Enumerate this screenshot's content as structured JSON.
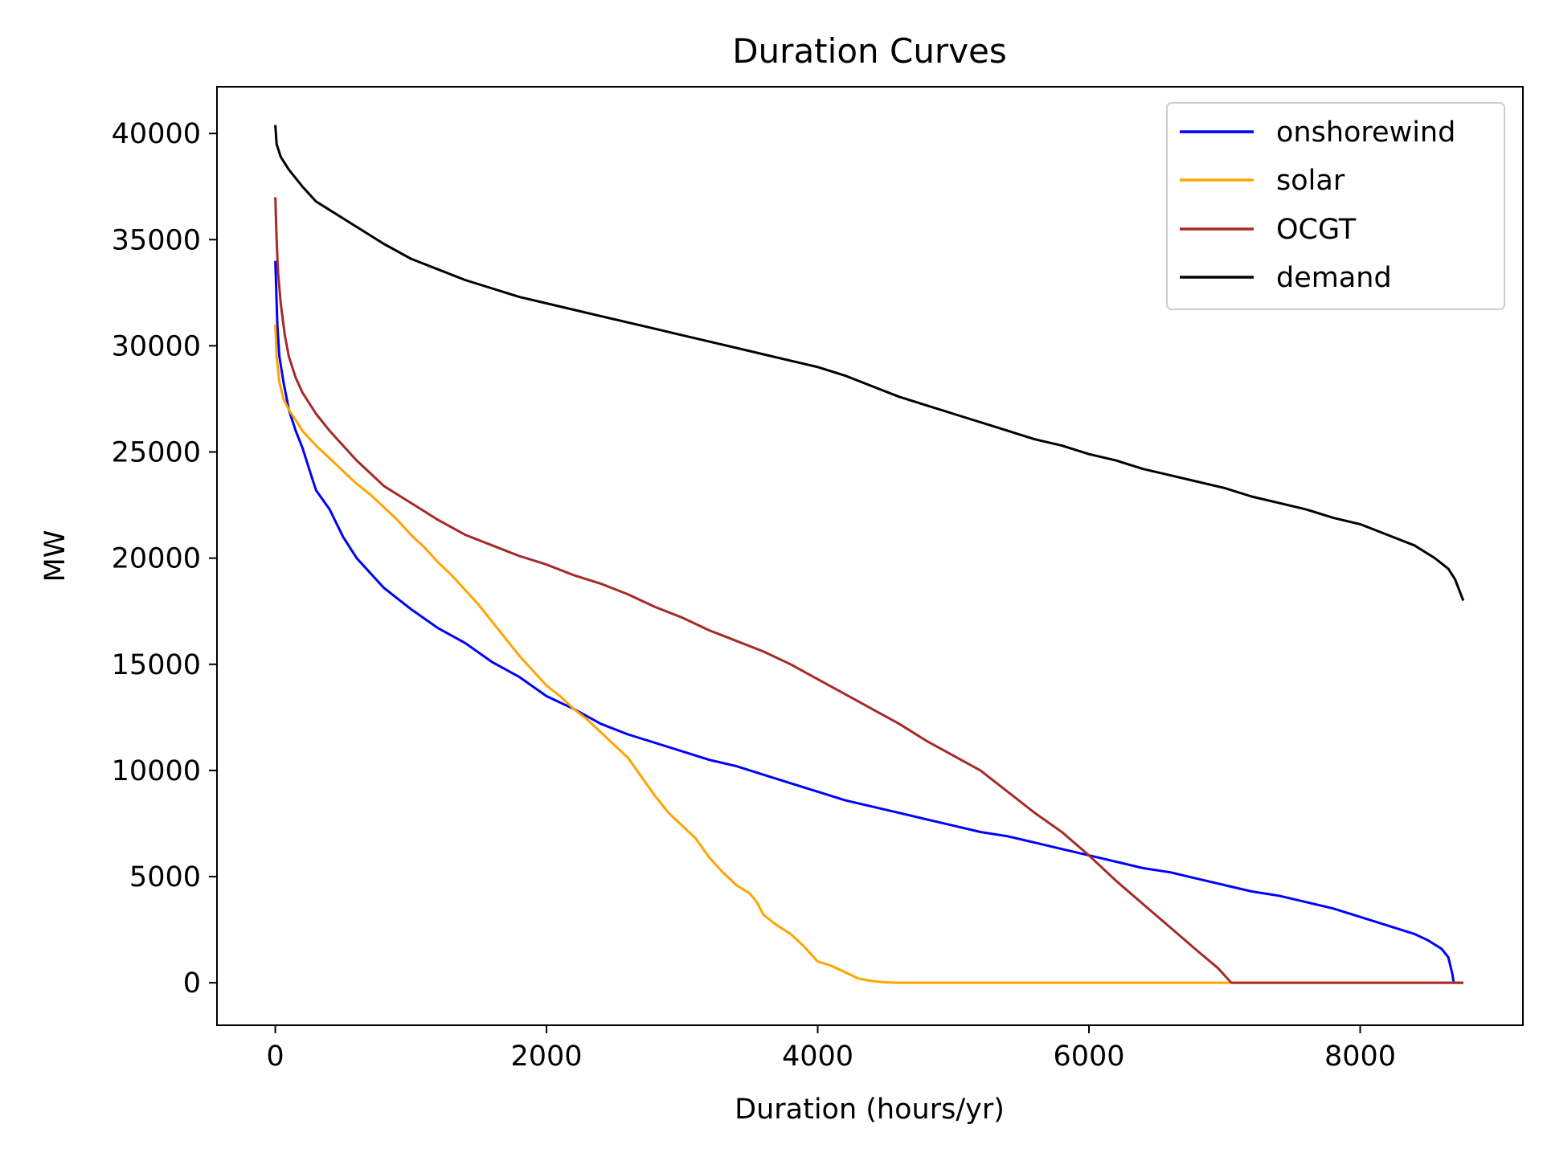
{
  "chart_data": {
    "type": "line",
    "title": "Duration Curves",
    "xlabel": "Duration (hours/yr)",
    "ylabel": "MW",
    "xlim": [
      -430,
      9200
    ],
    "ylim": [
      -2000,
      42200
    ],
    "xticks": [
      0,
      2000,
      4000,
      6000,
      8000
    ],
    "yticks": [
      0,
      5000,
      10000,
      15000,
      20000,
      25000,
      30000,
      35000,
      40000
    ],
    "grid": false,
    "legend_position": "top-right",
    "series": [
      {
        "name": "onshorewind",
        "color": "#0000ff",
        "points": [
          [
            0,
            34000
          ],
          [
            15,
            31000
          ],
          [
            30,
            29500
          ],
          [
            60,
            28300
          ],
          [
            100,
            27000
          ],
          [
            150,
            26000
          ],
          [
            200,
            25200
          ],
          [
            250,
            24200
          ],
          [
            300,
            23200
          ],
          [
            400,
            22300
          ],
          [
            500,
            21000
          ],
          [
            600,
            20000
          ],
          [
            700,
            19300
          ],
          [
            800,
            18600
          ],
          [
            1000,
            17600
          ],
          [
            1200,
            16700
          ],
          [
            1400,
            16000
          ],
          [
            1600,
            15100
          ],
          [
            1800,
            14400
          ],
          [
            2000,
            13500
          ],
          [
            2200,
            12900
          ],
          [
            2400,
            12200
          ],
          [
            2600,
            11700
          ],
          [
            2800,
            11300
          ],
          [
            3000,
            10900
          ],
          [
            3200,
            10500
          ],
          [
            3400,
            10200
          ],
          [
            3600,
            9800
          ],
          [
            3800,
            9400
          ],
          [
            4000,
            9000
          ],
          [
            4200,
            8600
          ],
          [
            4400,
            8300
          ],
          [
            4600,
            8000
          ],
          [
            4800,
            7700
          ],
          [
            5000,
            7400
          ],
          [
            5200,
            7100
          ],
          [
            5400,
            6900
          ],
          [
            5600,
            6600
          ],
          [
            5800,
            6300
          ],
          [
            6000,
            6000
          ],
          [
            6200,
            5700
          ],
          [
            6400,
            5400
          ],
          [
            6600,
            5200
          ],
          [
            6800,
            4900
          ],
          [
            7000,
            4600
          ],
          [
            7200,
            4300
          ],
          [
            7400,
            4100
          ],
          [
            7600,
            3800
          ],
          [
            7800,
            3500
          ],
          [
            8000,
            3100
          ],
          [
            8200,
            2700
          ],
          [
            8400,
            2300
          ],
          [
            8500,
            2000
          ],
          [
            8600,
            1600
          ],
          [
            8650,
            1200
          ],
          [
            8680,
            400
          ],
          [
            8690,
            0
          ],
          [
            8760,
            0
          ]
        ]
      },
      {
        "name": "solar",
        "color": "#ffa500",
        "points": [
          [
            0,
            31000
          ],
          [
            10,
            29500
          ],
          [
            30,
            28300
          ],
          [
            60,
            27500
          ],
          [
            100,
            27000
          ],
          [
            150,
            26500
          ],
          [
            200,
            26000
          ],
          [
            300,
            25300
          ],
          [
            400,
            24700
          ],
          [
            500,
            24100
          ],
          [
            600,
            23500
          ],
          [
            700,
            23000
          ],
          [
            800,
            22400
          ],
          [
            900,
            21800
          ],
          [
            1000,
            21100
          ],
          [
            1100,
            20500
          ],
          [
            1200,
            19800
          ],
          [
            1300,
            19200
          ],
          [
            1400,
            18500
          ],
          [
            1500,
            17800
          ],
          [
            1600,
            17000
          ],
          [
            1700,
            16200
          ],
          [
            1800,
            15400
          ],
          [
            1900,
            14700
          ],
          [
            2000,
            14000
          ],
          [
            2100,
            13500
          ],
          [
            2200,
            12900
          ],
          [
            2300,
            12400
          ],
          [
            2400,
            11800
          ],
          [
            2500,
            11200
          ],
          [
            2600,
            10600
          ],
          [
            2700,
            9700
          ],
          [
            2800,
            8800
          ],
          [
            2900,
            8000
          ],
          [
            3000,
            7400
          ],
          [
            3100,
            6800
          ],
          [
            3200,
            5900
          ],
          [
            3300,
            5200
          ],
          [
            3400,
            4600
          ],
          [
            3500,
            4200
          ],
          [
            3550,
            3800
          ],
          [
            3600,
            3200
          ],
          [
            3700,
            2700
          ],
          [
            3800,
            2300
          ],
          [
            3900,
            1700
          ],
          [
            4000,
            1000
          ],
          [
            4100,
            800
          ],
          [
            4200,
            500
          ],
          [
            4300,
            200
          ],
          [
            4400,
            80
          ],
          [
            4500,
            20
          ],
          [
            4600,
            0
          ],
          [
            8760,
            0
          ]
        ]
      },
      {
        "name": "OCGT",
        "color": "#a52a2a",
        "points": [
          [
            0,
            37000
          ],
          [
            10,
            35000
          ],
          [
            20,
            33500
          ],
          [
            40,
            32000
          ],
          [
            70,
            30500
          ],
          [
            100,
            29500
          ],
          [
            150,
            28500
          ],
          [
            200,
            27800
          ],
          [
            300,
            26800
          ],
          [
            400,
            26000
          ],
          [
            500,
            25300
          ],
          [
            600,
            24600
          ],
          [
            700,
            24000
          ],
          [
            800,
            23400
          ],
          [
            1000,
            22600
          ],
          [
            1200,
            21800
          ],
          [
            1400,
            21100
          ],
          [
            1600,
            20600
          ],
          [
            1800,
            20100
          ],
          [
            2000,
            19700
          ],
          [
            2200,
            19200
          ],
          [
            2400,
            18800
          ],
          [
            2600,
            18300
          ],
          [
            2800,
            17700
          ],
          [
            3000,
            17200
          ],
          [
            3200,
            16600
          ],
          [
            3400,
            16100
          ],
          [
            3600,
            15600
          ],
          [
            3800,
            15000
          ],
          [
            4000,
            14300
          ],
          [
            4200,
            13600
          ],
          [
            4400,
            12900
          ],
          [
            4600,
            12200
          ],
          [
            4800,
            11400
          ],
          [
            5000,
            10700
          ],
          [
            5200,
            10000
          ],
          [
            5400,
            9000
          ],
          [
            5600,
            8000
          ],
          [
            5800,
            7100
          ],
          [
            6000,
            6000
          ],
          [
            6200,
            4800
          ],
          [
            6400,
            3700
          ],
          [
            6600,
            2600
          ],
          [
            6800,
            1500
          ],
          [
            6950,
            700
          ],
          [
            7050,
            0
          ],
          [
            8760,
            0
          ]
        ]
      },
      {
        "name": "demand",
        "color": "#000000",
        "points": [
          [
            0,
            40400
          ],
          [
            10,
            39500
          ],
          [
            40,
            38900
          ],
          [
            100,
            38300
          ],
          [
            200,
            37500
          ],
          [
            300,
            36800
          ],
          [
            400,
            36400
          ],
          [
            600,
            35600
          ],
          [
            800,
            34800
          ],
          [
            1000,
            34100
          ],
          [
            1200,
            33600
          ],
          [
            1400,
            33100
          ],
          [
            1600,
            32700
          ],
          [
            1800,
            32300
          ],
          [
            2000,
            32000
          ],
          [
            2200,
            31700
          ],
          [
            2400,
            31400
          ],
          [
            2600,
            31100
          ],
          [
            2800,
            30800
          ],
          [
            3000,
            30500
          ],
          [
            3200,
            30200
          ],
          [
            3400,
            29900
          ],
          [
            3600,
            29600
          ],
          [
            3800,
            29300
          ],
          [
            4000,
            29000
          ],
          [
            4200,
            28600
          ],
          [
            4400,
            28100
          ],
          [
            4600,
            27600
          ],
          [
            4800,
            27200
          ],
          [
            5000,
            26800
          ],
          [
            5200,
            26400
          ],
          [
            5400,
            26000
          ],
          [
            5600,
            25600
          ],
          [
            5800,
            25300
          ],
          [
            6000,
            24900
          ],
          [
            6200,
            24600
          ],
          [
            6400,
            24200
          ],
          [
            6600,
            23900
          ],
          [
            6800,
            23600
          ],
          [
            7000,
            23300
          ],
          [
            7200,
            22900
          ],
          [
            7400,
            22600
          ],
          [
            7600,
            22300
          ],
          [
            7800,
            21900
          ],
          [
            8000,
            21600
          ],
          [
            8200,
            21100
          ],
          [
            8400,
            20600
          ],
          [
            8550,
            20000
          ],
          [
            8650,
            19500
          ],
          [
            8700,
            19000
          ],
          [
            8730,
            18500
          ],
          [
            8760,
            18000
          ]
        ]
      }
    ]
  }
}
